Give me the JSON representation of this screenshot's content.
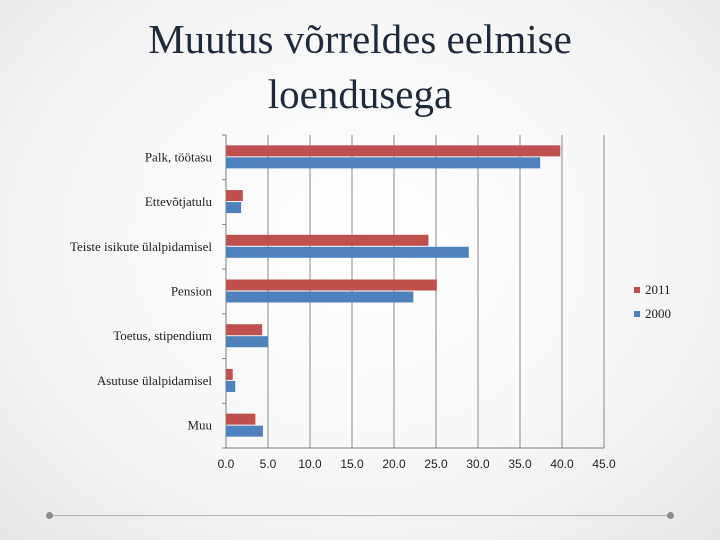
{
  "slide": {
    "title_line1": "Muutus võrreldes eelmise",
    "title_line2": "loendusega"
  },
  "chart_data": {
    "type": "bar",
    "orientation": "horizontal",
    "title": "",
    "xlabel": "",
    "ylabel": "",
    "categories": [
      "Palk, töötasu",
      "Ettevõtjatulu",
      "Teiste isikute ülalpidamisel",
      "Pension",
      "Toetus, stipendium",
      "Asutuse ülalpidamisel",
      "Muu"
    ],
    "series": [
      {
        "name": "2011",
        "color": "#c0504d",
        "values": [
          39.8,
          2.0,
          24.1,
          25.1,
          4.3,
          0.8,
          3.5
        ]
      },
      {
        "name": "2000",
        "color": "#4f81bd",
        "values": [
          37.4,
          1.8,
          28.9,
          22.3,
          5.0,
          1.1,
          4.4
        ]
      }
    ],
    "xlim": [
      0,
      45
    ],
    "xticks": [
      "0.0",
      "5.0",
      "10.0",
      "15.0",
      "20.0",
      "25.0",
      "30.0",
      "35.0",
      "40.0",
      "45.0"
    ],
    "grid": true,
    "legend_position": "right"
  }
}
